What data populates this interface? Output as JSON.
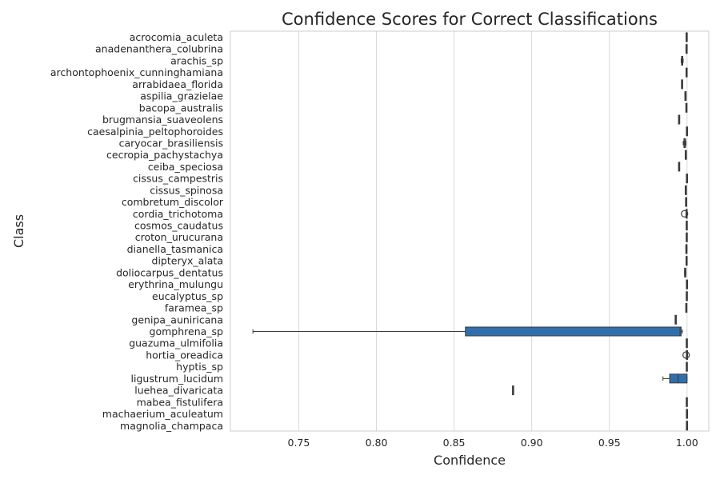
{
  "chart_data": {
    "type": "box",
    "orientation": "horizontal",
    "title": "Confidence Scores for Correct Classifications",
    "xlabel": "Confidence",
    "ylabel": "Class",
    "xlim": [
      0.706,
      1.014
    ],
    "xticks": [
      0.75,
      0.8,
      0.85,
      0.9,
      0.95,
      1.0
    ],
    "xtick_labels": [
      "0.75",
      "0.80",
      "0.85",
      "0.90",
      "0.95",
      "1.00"
    ],
    "grid": "vertical",
    "box_color": "#2f6fad",
    "categories": [
      "acrocomia_aculeta",
      "anadenanthera_colubrina",
      "arachis_sp",
      "archontophoenix_cunninghamiana",
      "arrabidaea_florida",
      "aspilia_grazielae",
      "bacopa_australis",
      "brugmansia_suaveolens",
      "caesalpinia_peltophoroides",
      "caryocar_brasiliensis",
      "cecropia_pachystachya",
      "ceiba_speciosa",
      "cissus_campestris",
      "cissus_spinosa",
      "combretum_discolor",
      "cordia_trichotoma",
      "cosmos_caudatus",
      "croton_urucurana",
      "dianella_tasmanica",
      "dipteryx_alata",
      "doliocarpus_dentatus",
      "erythrina_mulungu",
      "eucalyptus_sp",
      "faramea_sp",
      "genipa_auniricana",
      "gomphrena_sp",
      "guazuma_ulmifolia",
      "hortia_oreadica",
      "hyptis_sp",
      "ligustrum_lucidum",
      "luehea_divaricata",
      "mabea_fistulifera",
      "machaerium_aculeatum",
      "magnolia_champaca"
    ],
    "boxes": [
      {
        "whislo": 0.9994,
        "q1": 0.9996,
        "med": 0.9998,
        "q3": 0.9999,
        "whishi": 1.0,
        "fliers": []
      },
      {
        "whislo": 0.9993,
        "q1": 0.9995,
        "med": 0.9997,
        "q3": 0.9999,
        "whishi": 1.0,
        "fliers": []
      },
      {
        "whislo": 0.9962,
        "q1": 0.9965,
        "med": 0.9968,
        "q3": 0.9972,
        "whishi": 0.9975,
        "fliers": []
      },
      {
        "whislo": 0.9995,
        "q1": 0.9996,
        "med": 0.9997,
        "q3": 0.9998,
        "whishi": 0.9999,
        "fliers": []
      },
      {
        "whislo": 0.9965,
        "q1": 0.9967,
        "med": 0.9968,
        "q3": 0.9969,
        "whishi": 0.9971,
        "fliers": []
      },
      {
        "whislo": 0.9987,
        "q1": 0.9989,
        "med": 0.999,
        "q3": 0.9991,
        "whishi": 0.9993,
        "fliers": []
      },
      {
        "whislo": 0.9994,
        "q1": 0.9995,
        "med": 0.9996,
        "q3": 0.9997,
        "whishi": 0.9998,
        "fliers": []
      },
      {
        "whislo": 0.9946,
        "q1": 0.9948,
        "med": 0.9949,
        "q3": 0.995,
        "whishi": 0.9952,
        "fliers": []
      },
      {
        "whislo": 0.9998,
        "q1": 0.9999,
        "med": 0.9999,
        "q3": 1.0,
        "whishi": 1.0,
        "fliers": []
      },
      {
        "whislo": 0.9975,
        "q1": 0.998,
        "med": 0.9985,
        "q3": 0.999,
        "whishi": 0.9993,
        "fliers": []
      },
      {
        "whislo": 0.999,
        "q1": 0.9991,
        "med": 0.9992,
        "q3": 0.9993,
        "whishi": 0.9994,
        "fliers": []
      },
      {
        "whislo": 0.9946,
        "q1": 0.9948,
        "med": 0.9949,
        "q3": 0.995,
        "whishi": 0.9952,
        "fliers": []
      },
      {
        "whislo": 0.9998,
        "q1": 0.9999,
        "med": 0.9999,
        "q3": 1.0,
        "whishi": 1.0,
        "fliers": []
      },
      {
        "whislo": 0.999,
        "q1": 0.9991,
        "med": 0.9992,
        "q3": 0.9993,
        "whishi": 0.9994,
        "fliers": []
      },
      {
        "whislo": 0.9992,
        "q1": 0.9993,
        "med": 0.9994,
        "q3": 0.9995,
        "whishi": 0.9996,
        "fliers": []
      },
      {
        "whislo": 0.9995,
        "q1": 0.9996,
        "med": 0.9997,
        "q3": 0.9998,
        "whishi": 1.0,
        "fliers": [
          0.9984
        ]
      },
      {
        "whislo": 0.9996,
        "q1": 0.9997,
        "med": 0.9998,
        "q3": 0.9999,
        "whishi": 1.0,
        "fliers": []
      },
      {
        "whislo": 0.9996,
        "q1": 0.9997,
        "med": 0.9998,
        "q3": 0.9999,
        "whishi": 1.0,
        "fliers": []
      },
      {
        "whislo": 0.9993,
        "q1": 0.9995,
        "med": 0.9996,
        "q3": 0.9997,
        "whishi": 0.9999,
        "fliers": []
      },
      {
        "whislo": 0.9995,
        "q1": 0.9996,
        "med": 0.9997,
        "q3": 0.9998,
        "whishi": 1.0,
        "fliers": []
      },
      {
        "whislo": 0.9984,
        "q1": 0.9986,
        "med": 0.9988,
        "q3": 0.999,
        "whishi": 0.9992,
        "fliers": []
      },
      {
        "whislo": 0.9998,
        "q1": 0.9999,
        "med": 0.9999,
        "q3": 1.0,
        "whishi": 1.0,
        "fliers": []
      },
      {
        "whislo": 0.9997,
        "q1": 0.9998,
        "med": 0.9998,
        "q3": 0.9999,
        "whishi": 1.0,
        "fliers": []
      },
      {
        "whislo": 0.9993,
        "q1": 0.9994,
        "med": 0.9995,
        "q3": 0.9997,
        "whishi": 0.9998,
        "fliers": []
      },
      {
        "whislo": 0.9925,
        "q1": 0.9926,
        "med": 0.9927,
        "q3": 0.9928,
        "whishi": 0.9929,
        "fliers": []
      },
      {
        "whislo": 0.7205,
        "q1": 0.8573,
        "med": 0.9955,
        "q3": 0.9962,
        "whishi": 0.997,
        "fliers": []
      },
      {
        "whislo": 0.9997,
        "q1": 0.9998,
        "med": 0.9998,
        "q3": 0.9999,
        "whishi": 1.0,
        "fliers": []
      },
      {
        "whislo": 0.9998,
        "q1": 0.9999,
        "med": 0.9999,
        "q3": 1.0,
        "whishi": 1.0,
        "fliers": [
          0.9994
        ]
      },
      {
        "whislo": 0.9997,
        "q1": 0.9998,
        "med": 0.9998,
        "q3": 0.9999,
        "whishi": 1.0,
        "fliers": []
      },
      {
        "whislo": 0.9845,
        "q1": 0.9888,
        "med": 0.9943,
        "q3": 1.0,
        "whishi": 1.0,
        "fliers": []
      },
      {
        "whislo": 0.8878,
        "q1": 0.8879,
        "med": 0.888,
        "q3": 0.8881,
        "whishi": 0.8882,
        "fliers": []
      },
      {
        "whislo": 0.9997,
        "q1": 0.9998,
        "med": 0.9998,
        "q3": 0.9999,
        "whishi": 1.0,
        "fliers": []
      },
      {
        "whislo": 0.9998,
        "q1": 0.9999,
        "med": 0.9999,
        "q3": 1.0,
        "whishi": 1.0,
        "fliers": []
      },
      {
        "whislo": 0.9998,
        "q1": 0.9999,
        "med": 0.9999,
        "q3": 1.0,
        "whishi": 1.0,
        "fliers": []
      }
    ]
  }
}
